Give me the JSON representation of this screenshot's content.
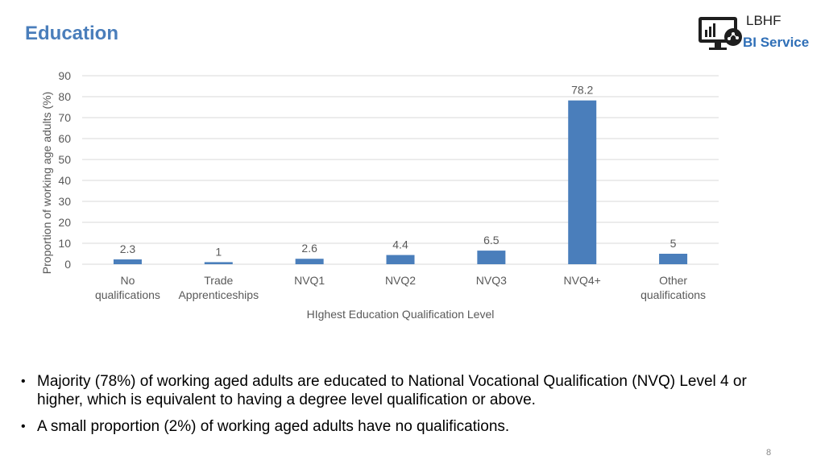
{
  "header": {
    "title": "Education",
    "logo_top": "LBHF",
    "logo_bottom": "BI Service",
    "logo_icon": "analytics-monitor-icon"
  },
  "chart_data": {
    "type": "bar",
    "categories": [
      [
        "No",
        "qualifications"
      ],
      [
        "Trade",
        "Apprenticeships"
      ],
      [
        "NVQ1"
      ],
      [
        "NVQ2"
      ],
      [
        "NVQ3"
      ],
      [
        "NVQ4+"
      ],
      [
        "Other",
        "qualifications"
      ]
    ],
    "values": [
      2.3,
      1,
      2.6,
      4.4,
      6.5,
      78.2,
      5
    ],
    "value_labels": [
      "2.3",
      "1",
      "2.6",
      "4.4",
      "6.5",
      "78.2",
      "5"
    ],
    "title": "",
    "xlabel": "HIghest Education Qualification Level",
    "ylabel": "Proportion of working age adults (%)",
    "ylim": [
      0,
      90
    ],
    "yticks": [
      0,
      10,
      20,
      30,
      40,
      50,
      60,
      70,
      80,
      90
    ],
    "grid": true,
    "bar_color": "#4a7ebb",
    "grid_color": "#d9d9d9"
  },
  "bullets": [
    "Majority (78%) of working aged adults are educated to National Vocational Qualification (NVQ) Level 4 or higher, which is equivalent to having a degree level qualification or above.",
    "A small proportion (2%) of working aged adults have no qualifications."
  ],
  "footer": {
    "page_number": "8"
  }
}
